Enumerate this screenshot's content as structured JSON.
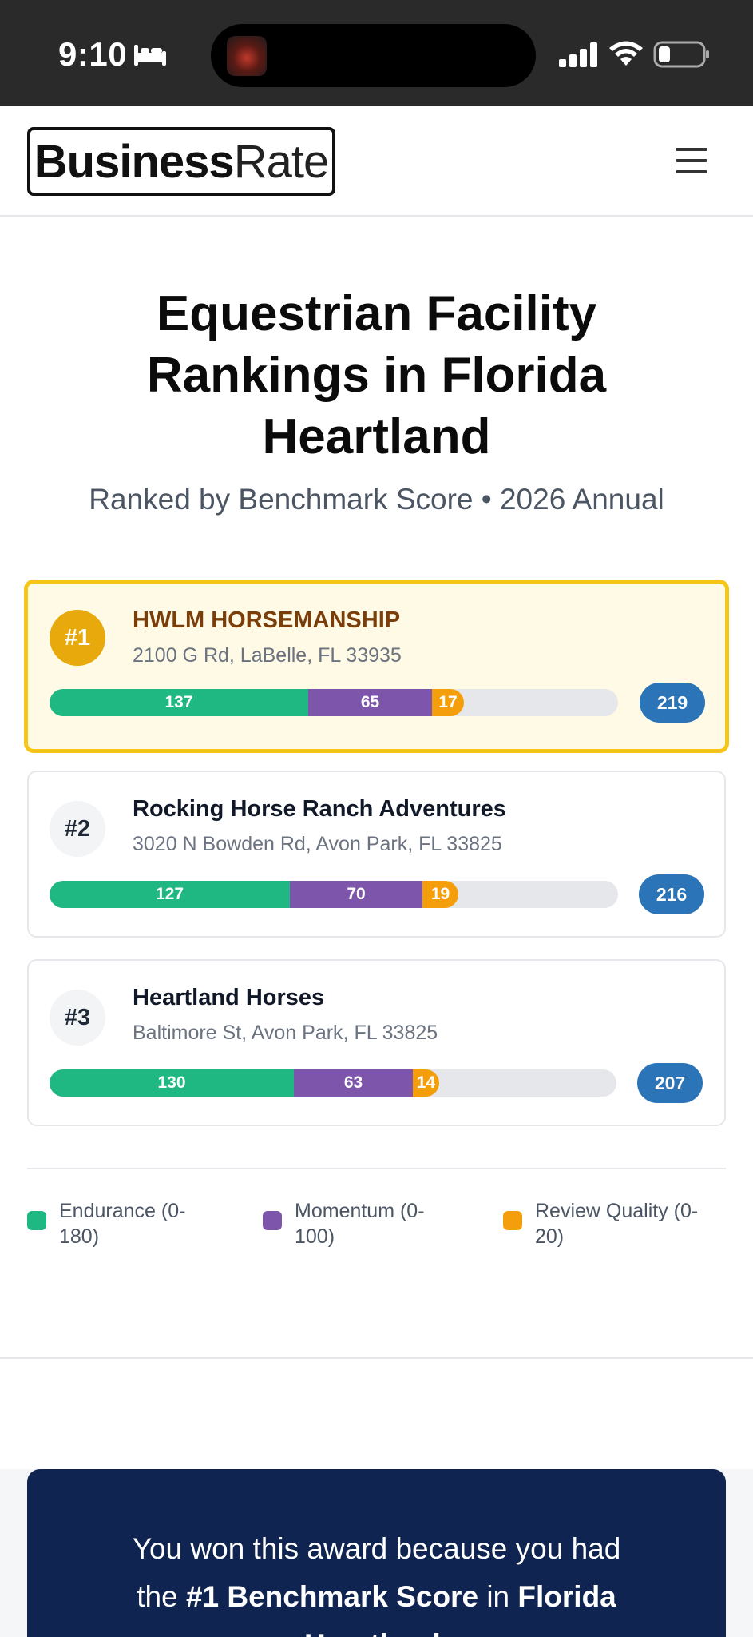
{
  "status_bar": {
    "time": "9:10",
    "icons": [
      "bed-icon",
      "signal-icon",
      "wifi-icon",
      "battery-icon"
    ]
  },
  "header": {
    "logo_bold": "Business",
    "logo_light": "Rate",
    "menu_icon": "hamburger-menu-icon"
  },
  "page": {
    "title": "Equestrian Facility Rankings in Florida Heartland",
    "subtitle": "Ranked by Benchmark Score • 2026 Annual"
  },
  "rankings": [
    {
      "rank": "#1",
      "name": "HWLM HORSEMANSHIP",
      "address": "2100 G Rd, LaBelle, FL 33935",
      "endurance": 137,
      "momentum": 65,
      "review_quality": 17,
      "total": 219
    },
    {
      "rank": "#2",
      "name": "Rocking Horse Ranch Adventures",
      "address": "3020 N Bowden Rd, Avon Park, FL 33825",
      "endurance": 127,
      "momentum": 70,
      "review_quality": 19,
      "total": 216
    },
    {
      "rank": "#3",
      "name": "Heartland Horses",
      "address": "Baltimore St, Avon Park, FL 33825",
      "endurance": 130,
      "momentum": 63,
      "review_quality": 14,
      "total": 207
    }
  ],
  "score_max": 300,
  "legend": [
    {
      "label_line1": "Endurance (0-",
      "label_line2": "180)",
      "color": "#20b882"
    },
    {
      "label_line1": "Momentum (0-",
      "label_line2": "100)",
      "color": "#7d55aa"
    },
    {
      "label_line1": "Review Quality (0-",
      "label_line2": "20)",
      "color": "#f59e0b"
    }
  ],
  "award": {
    "line1": "You won this award because you had",
    "line2_pre": "the",
    "line2_bold1": "#1 Benchmark Score",
    "line2_mid": "in",
    "line2_bold2": "Florida",
    "line3_bold": "Heartland."
  }
}
